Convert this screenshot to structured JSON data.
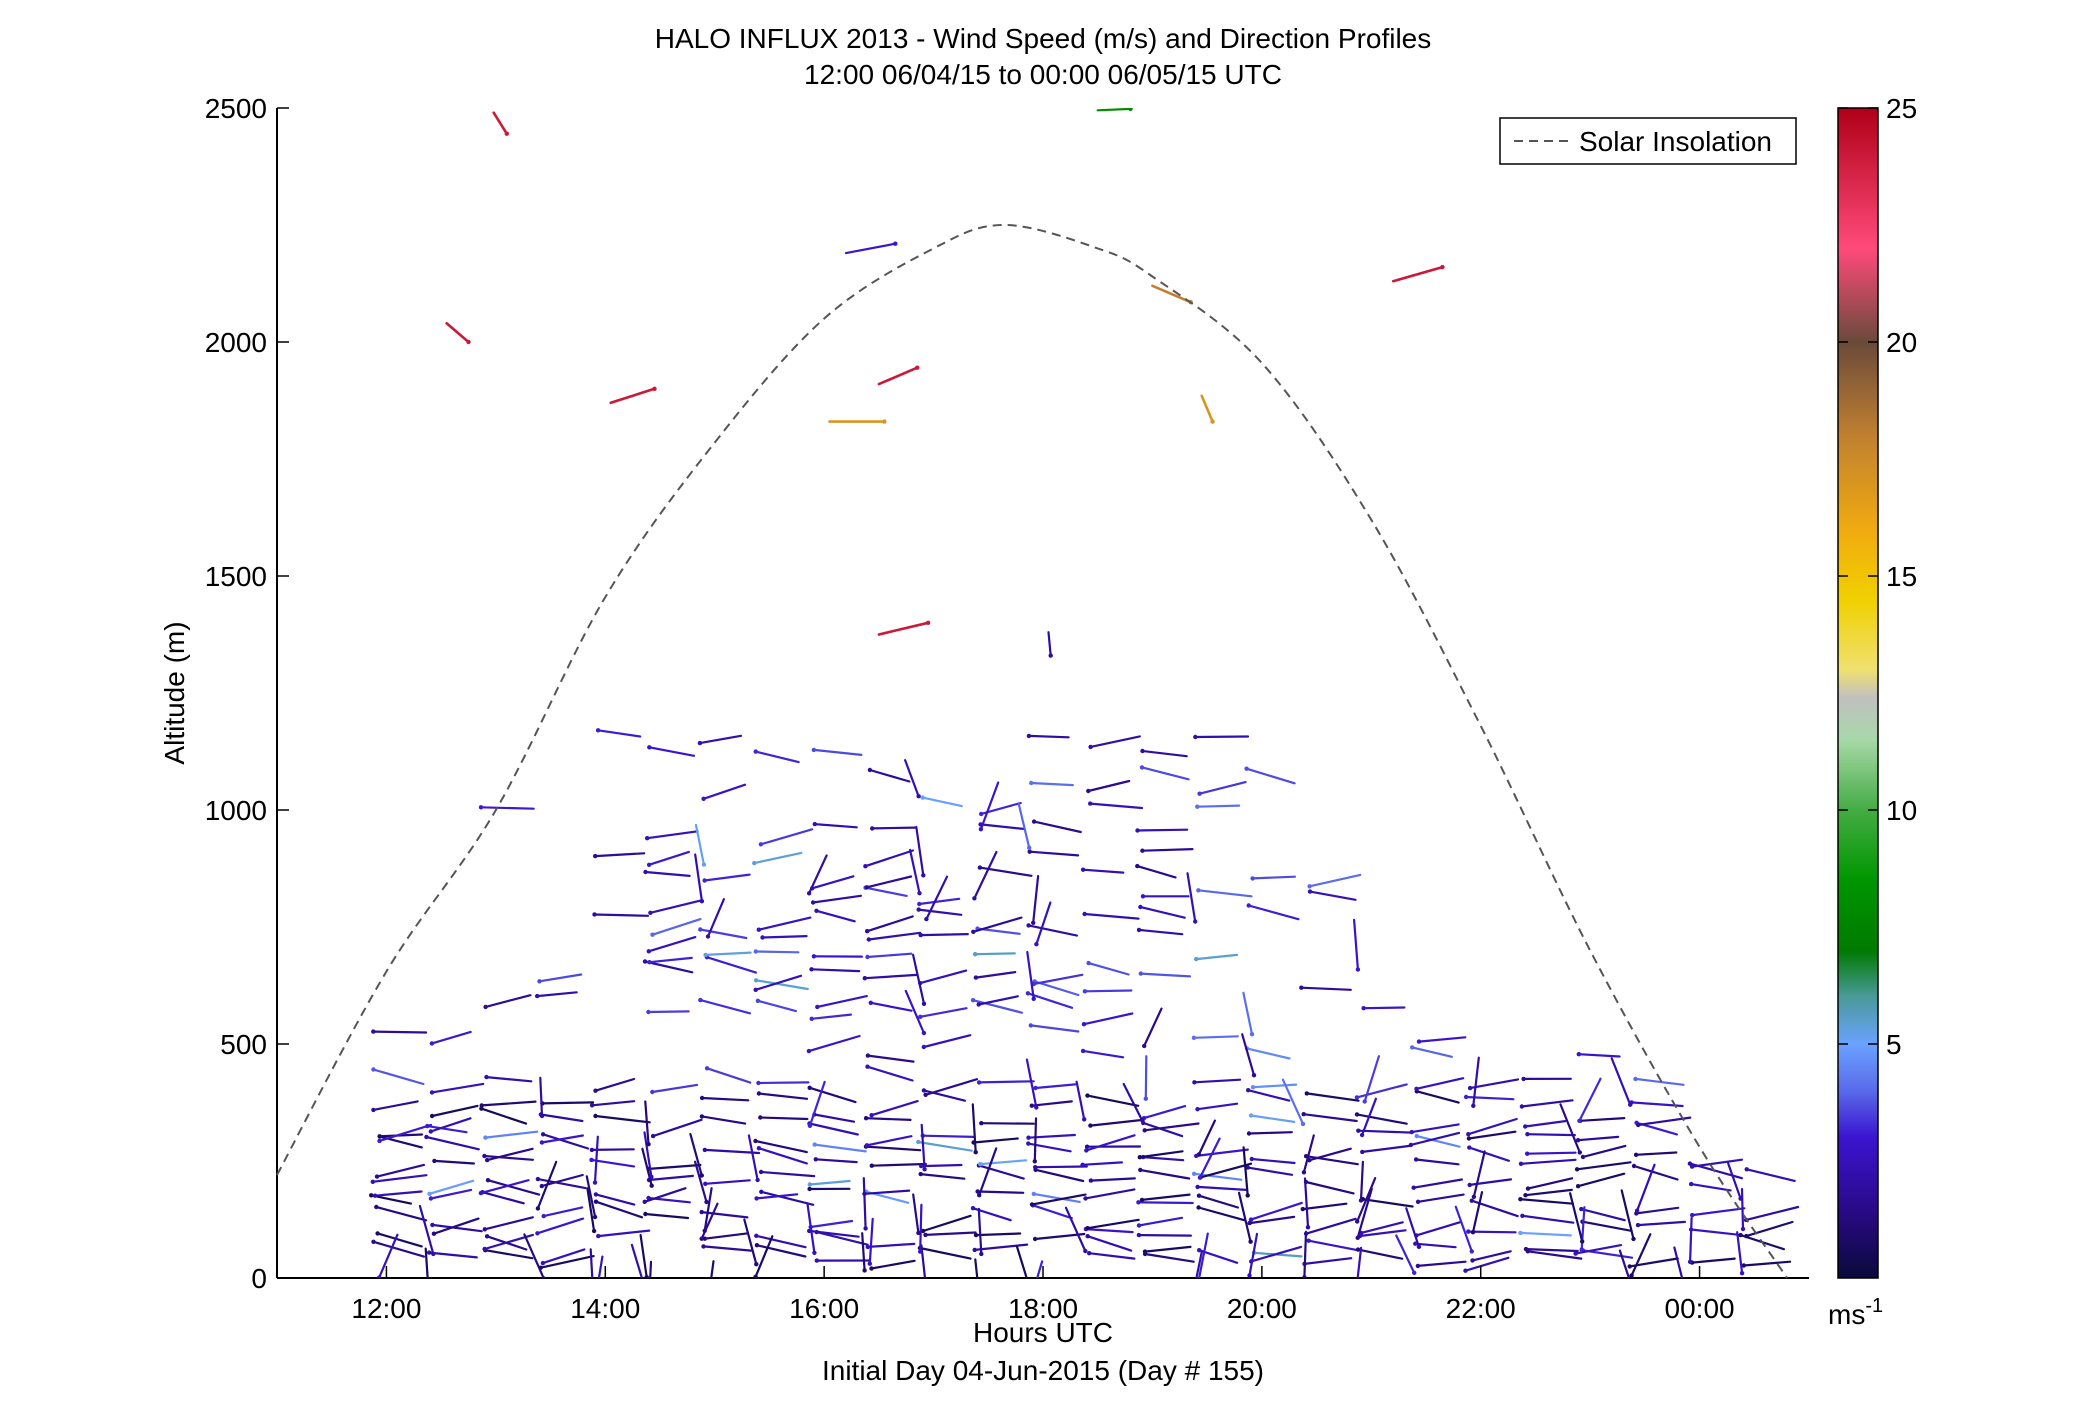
{
  "chart_data": {
    "type": "wind-barb",
    "title": "HALO INFLUX 2013 - Wind Speed (m/s) and Direction Profiles",
    "subtitle": "12:00 06/04/15 to 00:00 06/05/15  UTC",
    "xlabel": "Hours UTC",
    "xlabel2": "Initial Day 04-Jun-2015 (Day # 155)",
    "ylabel": "Altitude (m)",
    "xlim": [
      11.0,
      25.0
    ],
    "ylim": [
      0,
      2500
    ],
    "x_ticks": [
      {
        "value": 12,
        "label": "12:00"
      },
      {
        "value": 14,
        "label": "14:00"
      },
      {
        "value": 16,
        "label": "16:00"
      },
      {
        "value": 18,
        "label": "18:00"
      },
      {
        "value": 20,
        "label": "20:00"
      },
      {
        "value": 22,
        "label": "22:00"
      },
      {
        "value": 24,
        "label": "00:00"
      }
    ],
    "y_ticks": [
      {
        "value": 0,
        "label": "0"
      },
      {
        "value": 500,
        "label": "500"
      },
      {
        "value": 1000,
        "label": "1000"
      },
      {
        "value": 1500,
        "label": "1500"
      },
      {
        "value": 2000,
        "label": "2000"
      },
      {
        "value": 2500,
        "label": "2500"
      }
    ],
    "legend": {
      "label": "Solar Insolation",
      "position": "top-right"
    },
    "colorbar": {
      "range": [
        0,
        25
      ],
      "ticks": [
        {
          "value": 5,
          "label": "5"
        },
        {
          "value": 10,
          "label": "10"
        },
        {
          "value": 15,
          "label": "15"
        },
        {
          "value": 20,
          "label": "20"
        },
        {
          "value": 25,
          "label": "25"
        }
      ],
      "unit": "ms",
      "unit_exp": "-1",
      "stops": [
        {
          "v": 0,
          "c": "#0a0a3a"
        },
        {
          "v": 1.5,
          "c": "#2a0a8a"
        },
        {
          "v": 3,
          "c": "#3a14d0"
        },
        {
          "v": 4,
          "c": "#5a6aea"
        },
        {
          "v": 5,
          "c": "#6aa2ff"
        },
        {
          "v": 6,
          "c": "#4a9a9a"
        },
        {
          "v": 7,
          "c": "#007a00"
        },
        {
          "v": 8.5,
          "c": "#009600"
        },
        {
          "v": 10,
          "c": "#44ac44"
        },
        {
          "v": 11.5,
          "c": "#a8d8a8"
        },
        {
          "v": 12.4,
          "c": "#c0c0c0"
        },
        {
          "v": 13,
          "c": "#f0e070"
        },
        {
          "v": 14.5,
          "c": "#f0d000"
        },
        {
          "v": 16,
          "c": "#f0aa10"
        },
        {
          "v": 18,
          "c": "#c08030"
        },
        {
          "v": 20,
          "c": "#6a4a3a"
        },
        {
          "v": 22,
          "c": "#ff4a7a"
        },
        {
          "v": 25,
          "c": "#b00018"
        }
      ]
    },
    "solar_curve": {
      "start": 11.0,
      "end": 24.8,
      "peak_time": 17.65,
      "points": [
        [
          11.0,
          220
        ],
        [
          12.0,
          655
        ],
        [
          13.0,
          1000
        ],
        [
          14.0,
          1455
        ],
        [
          15.0,
          1785
        ],
        [
          16.0,
          2050
        ],
        [
          17.0,
          2200
        ],
        [
          17.65,
          2250
        ],
        [
          18.5,
          2200
        ],
        [
          19.0,
          2140
        ],
        [
          20.0,
          1955
        ],
        [
          21.0,
          1620
        ],
        [
          22.0,
          1180
        ],
        [
          23.0,
          700
        ],
        [
          24.0,
          280
        ],
        [
          24.8,
          0
        ]
      ]
    },
    "upper_barbs": [
      {
        "t": 12.98,
        "z": 2490,
        "dt": 0.12,
        "dz": -45,
        "s": 24
      },
      {
        "t": 16.2,
        "z": 2190,
        "dt": 0.45,
        "dz": 20,
        "s": 3
      },
      {
        "t": 18.5,
        "z": 2495,
        "dt": 0.3,
        "dz": 3,
        "s": 8
      },
      {
        "t": 19.0,
        "z": 2120,
        "dt": 0.35,
        "dz": -35,
        "s": 18
      },
      {
        "t": 21.2,
        "z": 2130,
        "dt": 0.45,
        "dz": 30,
        "s": 24
      },
      {
        "t": 12.55,
        "z": 2040,
        "dt": 0.2,
        "dz": -40,
        "s": 24
      },
      {
        "t": 14.05,
        "z": 1870,
        "dt": 0.4,
        "dz": 30,
        "s": 24
      },
      {
        "t": 16.5,
        "z": 1910,
        "dt": 0.35,
        "dz": 35,
        "s": 24
      },
      {
        "t": 16.05,
        "z": 1830,
        "dt": 0.5,
        "dz": 0,
        "s": 17
      },
      {
        "t": 19.45,
        "z": 1885,
        "dt": 0.1,
        "dz": -55,
        "s": 17
      },
      {
        "t": 16.5,
        "z": 1375,
        "dt": 0.45,
        "dz": 25,
        "s": 24
      },
      {
        "t": 18.05,
        "z": 1380,
        "dt": 0.02,
        "dz": -50,
        "s": 2
      }
    ],
    "barb_field": {
      "time_start": 11.9,
      "time_end": 24.5,
      "time_step": 0.5,
      "z_levels": [
        40,
        65,
        95,
        125,
        155,
        185,
        215,
        245,
        275,
        305,
        335,
        375,
        420,
        470,
        520,
        570,
        610,
        650,
        690,
        730,
        770,
        810,
        860,
        910,
        960,
        1010,
        1060,
        1110,
        1160
      ],
      "seed": 155
    }
  }
}
